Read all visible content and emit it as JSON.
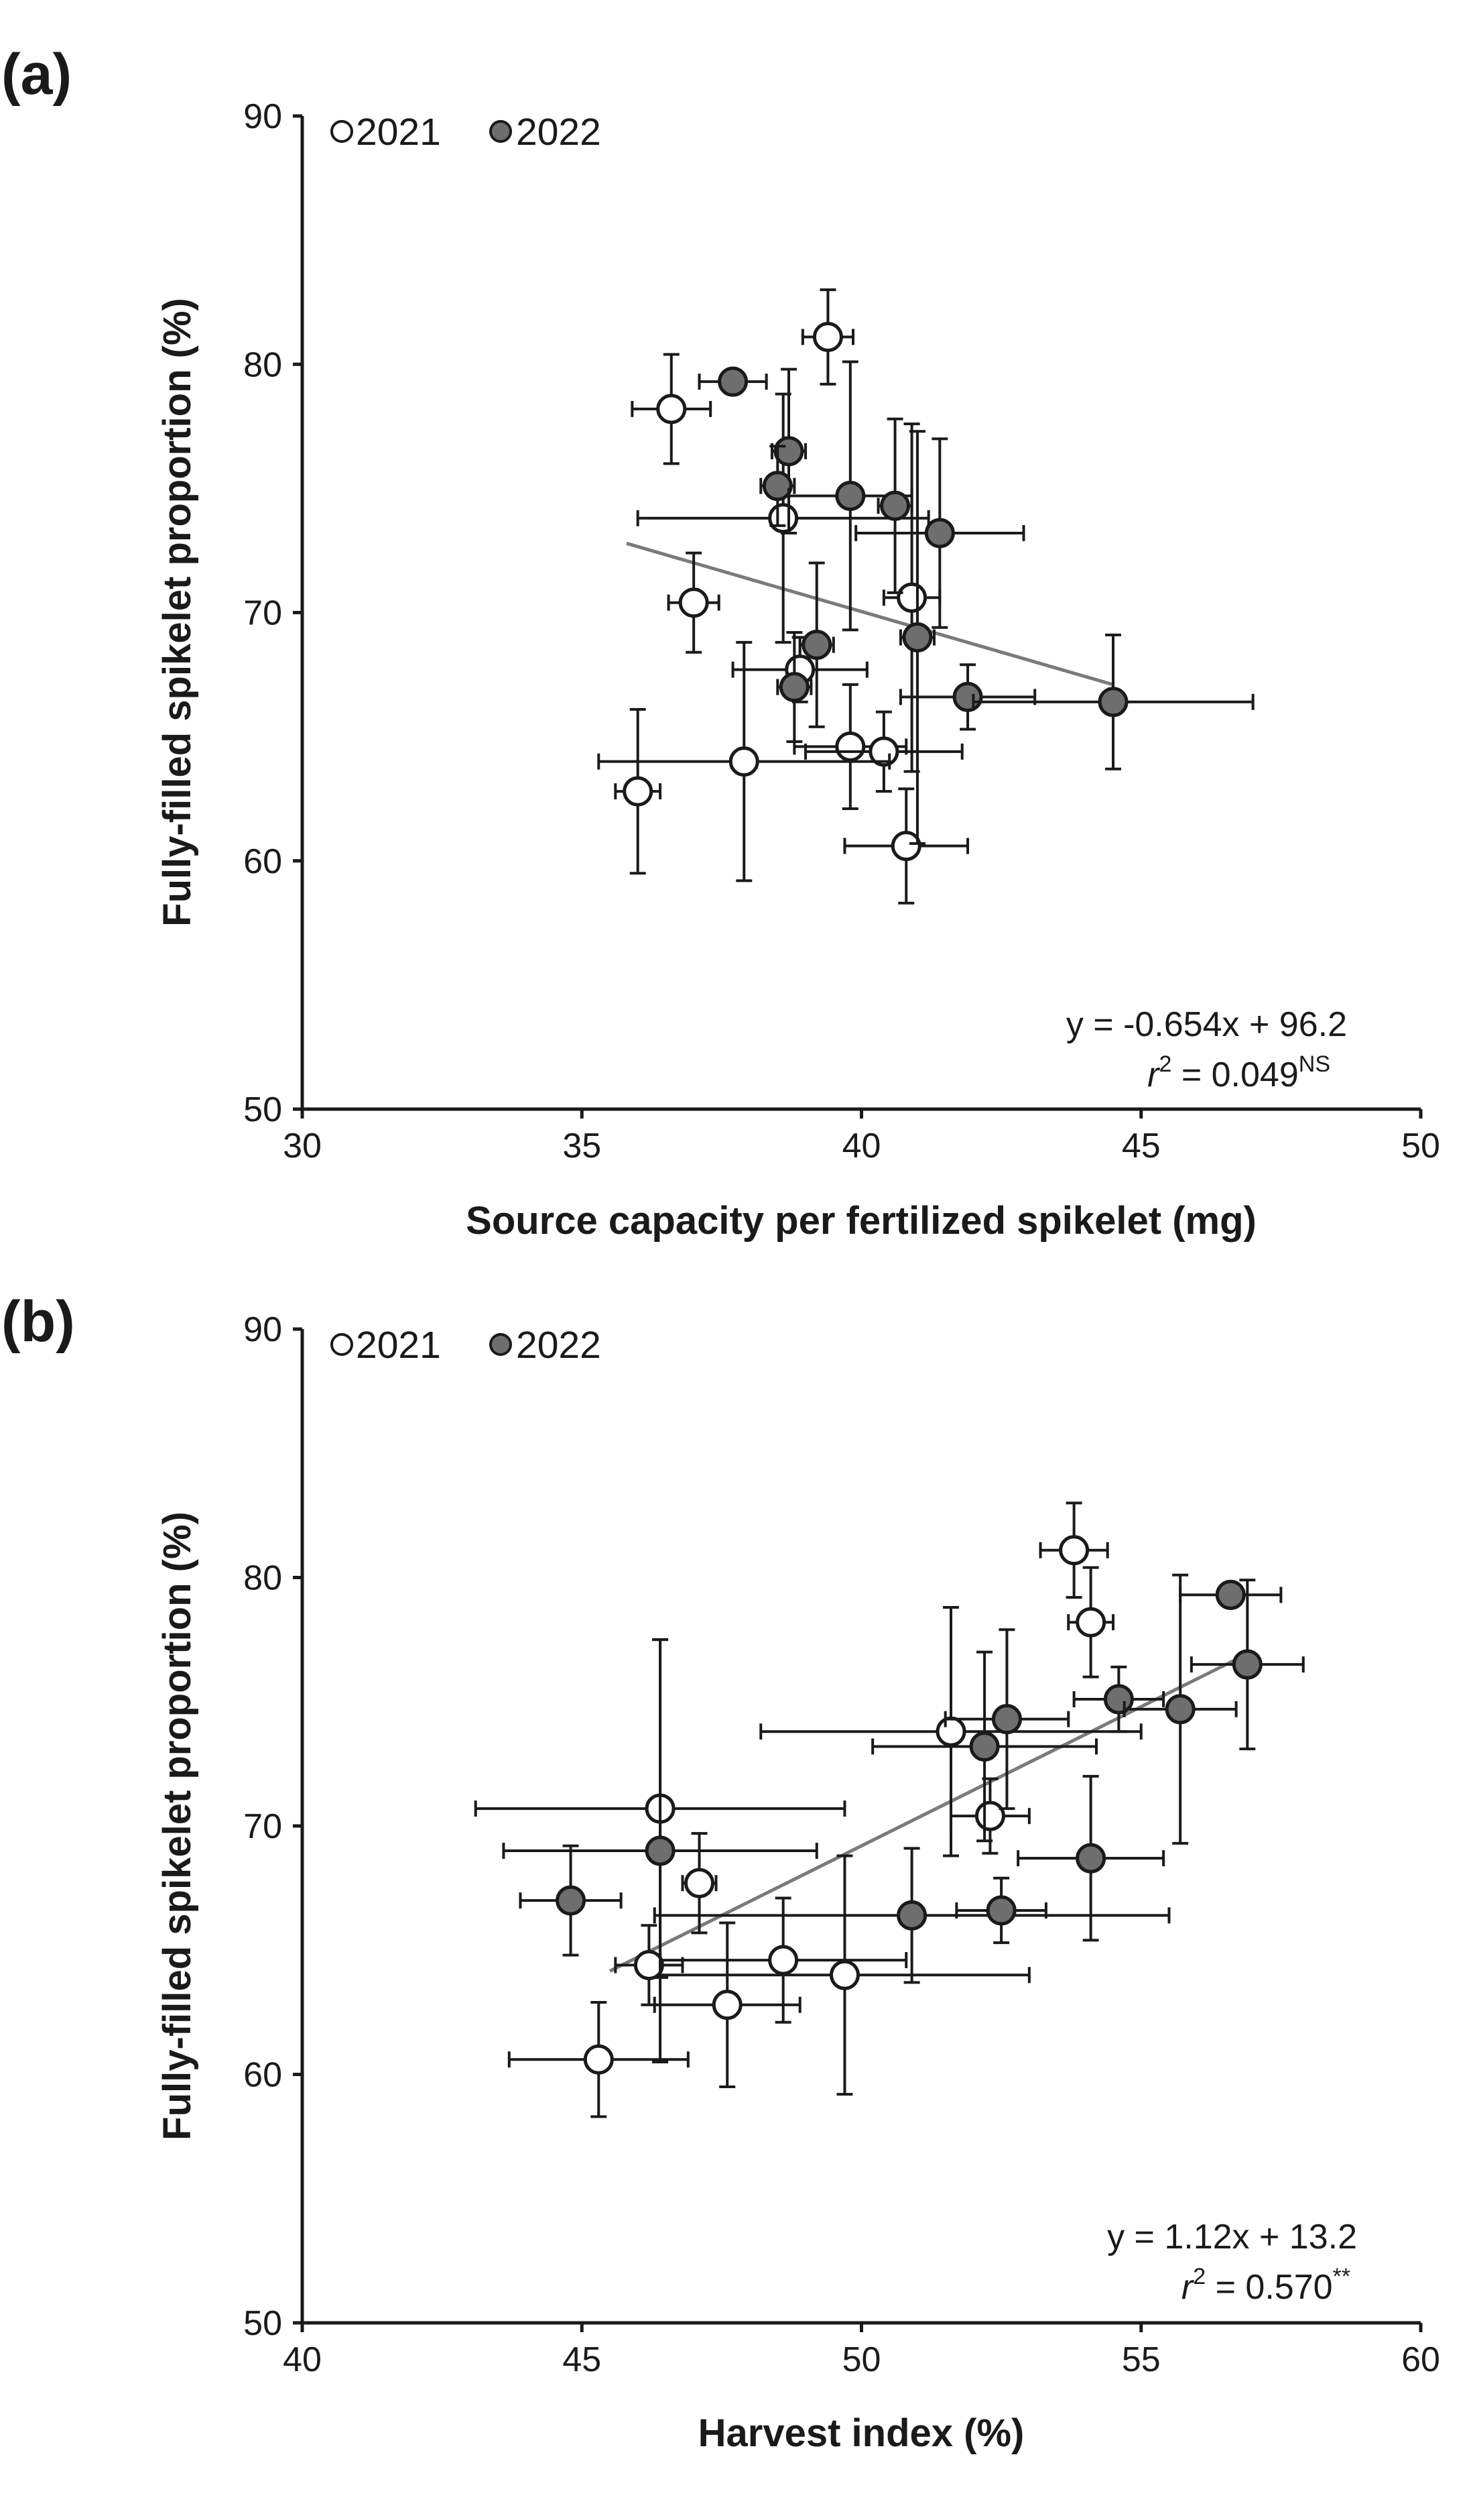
{
  "chart_data": [
    {
      "panel_label": "(a)",
      "type": "scatter",
      "xlabel": "Source capacity per fertilized spikelet (mg)",
      "ylabel": "Fully-filled spikelet proportion (%)",
      "xlim": [
        30,
        50
      ],
      "ylim": [
        50,
        90
      ],
      "xticks": [
        "30",
        "35",
        "40",
        "45",
        "50"
      ],
      "yticks": [
        "50",
        "60",
        "70",
        "80",
        "90"
      ],
      "legend": [
        "2021",
        "2022"
      ],
      "legend_position": "top-left",
      "series": [
        {
          "name": "2021",
          "marker": "open-circle",
          "color": "#ffffff",
          "points": [
            {
              "x": 39.4,
              "y": 81.1,
              "xerr": 0.45,
              "yerr": 1.9
            },
            {
              "x": 36.6,
              "y": 78.2,
              "xerr": 0.7,
              "yerr": 2.2
            },
            {
              "x": 38.6,
              "y": 73.8,
              "xerr": 2.6,
              "yerr": 5.0
            },
            {
              "x": 37.0,
              "y": 70.4,
              "xerr": 0.45,
              "yerr": 2.0
            },
            {
              "x": 40.9,
              "y": 70.6,
              "xerr": 0.5,
              "yerr": 7.0
            },
            {
              "x": 38.9,
              "y": 67.7,
              "xerr": 1.2,
              "yerr": 1.3
            },
            {
              "x": 39.8,
              "y": 64.6,
              "xerr": 1.0,
              "yerr": 2.5
            },
            {
              "x": 40.4,
              "y": 64.4,
              "xerr": 1.4,
              "yerr": 1.6
            },
            {
              "x": 37.9,
              "y": 64.0,
              "xerr": 2.6,
              "yerr": 4.8
            },
            {
              "x": 36.0,
              "y": 62.8,
              "xerr": 0.4,
              "yerr": 3.3
            },
            {
              "x": 40.8,
              "y": 60.6,
              "xerr": 1.1,
              "yerr": 2.3
            }
          ]
        },
        {
          "name": "2022",
          "marker": "filled-circle",
          "color": "#6e6e6e",
          "points": [
            {
              "x": 37.7,
              "y": 79.3,
              "xerr": 0.6,
              "yerr": 0.3
            },
            {
              "x": 38.7,
              "y": 76.5,
              "xerr": 0.3,
              "yerr": 3.3
            },
            {
              "x": 38.5,
              "y": 75.1,
              "xerr": 0.3,
              "yerr": 1.6
            },
            {
              "x": 39.8,
              "y": 74.7,
              "xerr": 1.1,
              "yerr": 5.4
            },
            {
              "x": 40.6,
              "y": 74.3,
              "xerr": 0.3,
              "yerr": 3.5
            },
            {
              "x": 41.4,
              "y": 73.2,
              "xerr": 1.5,
              "yerr": 3.8
            },
            {
              "x": 41.0,
              "y": 69.0,
              "xerr": 0.3,
              "yerr": 8.3
            },
            {
              "x": 39.2,
              "y": 68.7,
              "xerr": 0.3,
              "yerr": 3.3
            },
            {
              "x": 38.8,
              "y": 67.0,
              "xerr": 0.3,
              "yerr": 2.2
            },
            {
              "x": 41.9,
              "y": 66.6,
              "xerr": 1.2,
              "yerr": 1.3
            },
            {
              "x": 44.5,
              "y": 66.4,
              "xerr": 2.5,
              "yerr": 2.7
            }
          ]
        }
      ],
      "trendline": {
        "x_range": [
          35.8,
          44.5
        ],
        "slope": -0.654,
        "intercept": 96.2,
        "color": "#7a7a7a"
      },
      "equation": "y = -0.654x + 96.2",
      "r2_label": "r",
      "r2_sup": "2",
      "r2_value": " = 0.049",
      "r2_significance": "NS"
    },
    {
      "panel_label": "(b)",
      "type": "scatter",
      "xlabel": "Harvest index (%)",
      "ylabel": "Fully-filled spikelet proportion (%)",
      "xlim": [
        40,
        60
      ],
      "ylim": [
        50,
        90
      ],
      "xticks": [
        "40",
        "45",
        "50",
        "55",
        "60"
      ],
      "yticks": [
        "50",
        "60",
        "70",
        "80",
        "90"
      ],
      "legend": [
        "2021",
        "2022"
      ],
      "legend_position": "top-left",
      "series": [
        {
          "name": "2021",
          "marker": "open-circle",
          "color": "#ffffff",
          "points": [
            {
              "x": 53.8,
              "y": 81.1,
              "xerr": 0.6,
              "yerr": 1.9
            },
            {
              "x": 54.1,
              "y": 78.2,
              "xerr": 0.4,
              "yerr": 2.2
            },
            {
              "x": 51.6,
              "y": 73.8,
              "xerr": 3.4,
              "yerr": 5.0
            },
            {
              "x": 46.4,
              "y": 70.7,
              "xerr": 3.3,
              "yerr": 6.8
            },
            {
              "x": 52.3,
              "y": 70.4,
              "xerr": 0.7,
              "yerr": 1.5
            },
            {
              "x": 47.1,
              "y": 67.7,
              "xerr": 0.3,
              "yerr": 2.0
            },
            {
              "x": 46.2,
              "y": 64.4,
              "xerr": 0.6,
              "yerr": 1.6
            },
            {
              "x": 48.6,
              "y": 64.6,
              "xerr": 2.2,
              "yerr": 2.5
            },
            {
              "x": 49.7,
              "y": 64.0,
              "xerr": 3.3,
              "yerr": 4.8
            },
            {
              "x": 47.6,
              "y": 62.8,
              "xerr": 1.3,
              "yerr": 3.3
            },
            {
              "x": 45.3,
              "y": 60.6,
              "xerr": 1.6,
              "yerr": 2.3
            }
          ]
        },
        {
          "name": "2022",
          "marker": "filled-circle",
          "color": "#6e6e6e",
          "points": [
            {
              "x": 56.6,
              "y": 79.3,
              "xerr": 0.9,
              "yerr": 0.4
            },
            {
              "x": 56.9,
              "y": 76.5,
              "xerr": 1.0,
              "yerr": 3.4
            },
            {
              "x": 54.6,
              "y": 75.1,
              "xerr": 0.8,
              "yerr": 1.3
            },
            {
              "x": 55.7,
              "y": 74.7,
              "xerr": 1.0,
              "yerr": 5.4
            },
            {
              "x": 52.6,
              "y": 74.3,
              "xerr": 1.1,
              "yerr": 3.6
            },
            {
              "x": 52.2,
              "y": 73.2,
              "xerr": 2.0,
              "yerr": 3.8
            },
            {
              "x": 46.4,
              "y": 69.0,
              "xerr": 2.8,
              "yerr": 8.5
            },
            {
              "x": 54.1,
              "y": 68.7,
              "xerr": 1.3,
              "yerr": 3.3
            },
            {
              "x": 44.8,
              "y": 67.0,
              "xerr": 0.9,
              "yerr": 2.2
            },
            {
              "x": 50.9,
              "y": 66.4,
              "xerr": 4.6,
              "yerr": 2.7
            },
            {
              "x": 52.5,
              "y": 66.6,
              "xerr": 0.8,
              "yerr": 1.3
            }
          ]
        }
      ],
      "trendline": {
        "x_range": [
          45.5,
          56.9
        ],
        "slope": 1.12,
        "intercept": 13.2,
        "color": "#7a7a7a"
      },
      "equation": "y = 1.12x + 13.2",
      "r2_label": "r",
      "r2_sup": "2",
      "r2_value": " = 0.570",
      "r2_significance": "**"
    }
  ]
}
